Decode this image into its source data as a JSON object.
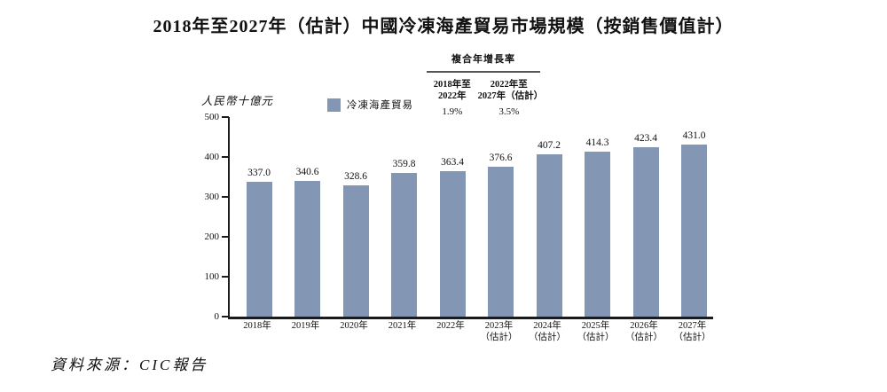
{
  "page": {
    "title": "2018年至2027年（估計）中國冷凍海產貿易市場規模（按銷售價值計）",
    "source": "資料來源：CIC報告"
  },
  "cagr": {
    "title": "複合年增長率",
    "columns": [
      {
        "period_lines": [
          "2018年至",
          "2022年"
        ],
        "value": "1.9%"
      },
      {
        "period_lines": [
          "2022年至",
          "2027年（估計）"
        ],
        "value": "3.5%"
      }
    ]
  },
  "legend": {
    "label": "冷凍海產貿易",
    "swatch_color": "#8397B4"
  },
  "chart_data": {
    "type": "bar",
    "title": "2018年至2027年（估計）中國冷凍海產貿易市場規模（按銷售價值計）",
    "ylabel": "人民幣十億元",
    "categories": [
      "2018年",
      "2019年",
      "2020年",
      "2021年",
      "2022年",
      "2023年（估計）",
      "2024年（估計）",
      "2025年（估計）",
      "2026年（估計）",
      "2027年（估計）"
    ],
    "values": [
      337.0,
      340.6,
      328.6,
      359.8,
      363.4,
      376.6,
      407.2,
      414.3,
      423.4,
      431.0
    ],
    "value_labels": [
      "337.0",
      "340.6",
      "328.6",
      "359.8",
      "363.4",
      "376.6",
      "407.2",
      "414.3",
      "423.4",
      "431.0"
    ],
    "ylim": [
      0,
      500
    ],
    "yticks": [
      0,
      100,
      200,
      300,
      400,
      500
    ],
    "grid": false,
    "legend_position": "top",
    "legend_entries": [
      "冷凍海產貿易"
    ],
    "bar_color": "#8397B4",
    "cagr_2018_2022": "1.9%",
    "cagr_2022_2027": "3.5%",
    "source": "CIC報告"
  }
}
